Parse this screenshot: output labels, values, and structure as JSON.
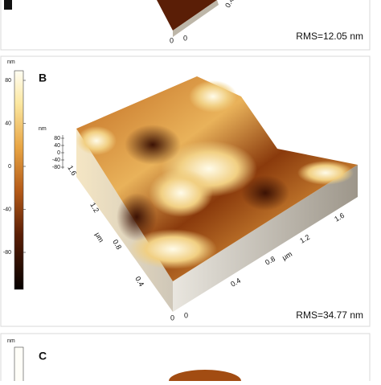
{
  "panel_a": {
    "axis_labels": [
      "0.4",
      "0"
    ],
    "origin": [
      "0",
      "0"
    ],
    "rms": "RMS=12.05 nm"
  },
  "panel_b": {
    "letter": "B",
    "colorbar": {
      "unit": "nm",
      "ticks": [
        "80",
        "40",
        "0",
        "-40",
        "-80"
      ]
    },
    "z_axis": {
      "unit": "nm",
      "ticks": [
        "80",
        "40",
        "0",
        "-40",
        "-80"
      ]
    },
    "x_axis": {
      "ticks": [
        "0.4",
        "0.8",
        "1.2",
        "1.6"
      ],
      "unit": "μm"
    },
    "y_axis": {
      "ticks": [
        "0.4",
        "0.8",
        "1.2",
        "1.6"
      ],
      "unit": "μm"
    },
    "origin": [
      "0",
      "0"
    ],
    "rms": "RMS=34.77 nm"
  },
  "panel_c": {
    "letter": "C",
    "colorbar": {
      "unit": "nm"
    }
  }
}
